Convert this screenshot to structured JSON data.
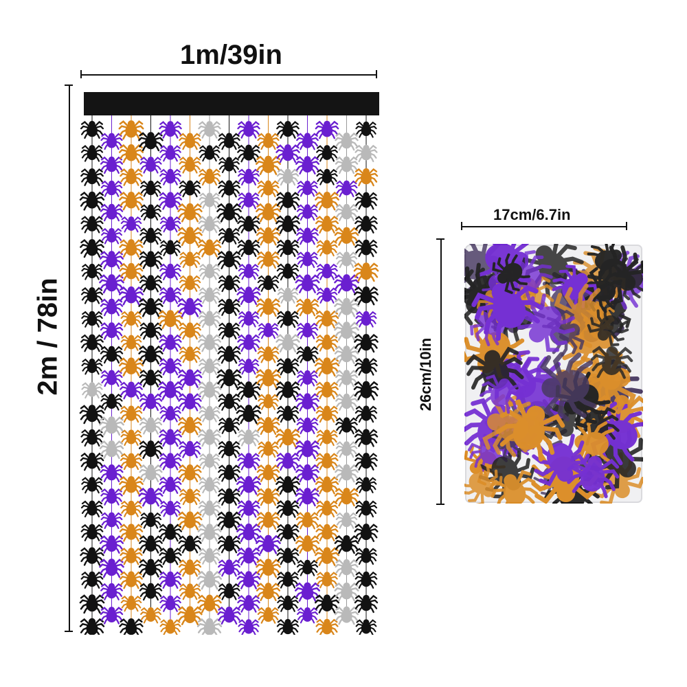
{
  "dimensions": {
    "curtain_width": "1m/39in",
    "curtain_height": "2m / 78in",
    "pack_width": "17cm/6.7in",
    "pack_height": "26cm/10in"
  },
  "colors": {
    "black": "#121212",
    "purple": "#6a1fd0",
    "orange": "#d9861a",
    "silver": "#b9b9b9",
    "header": "#141414"
  },
  "icons": [
    "spider-icon"
  ]
}
